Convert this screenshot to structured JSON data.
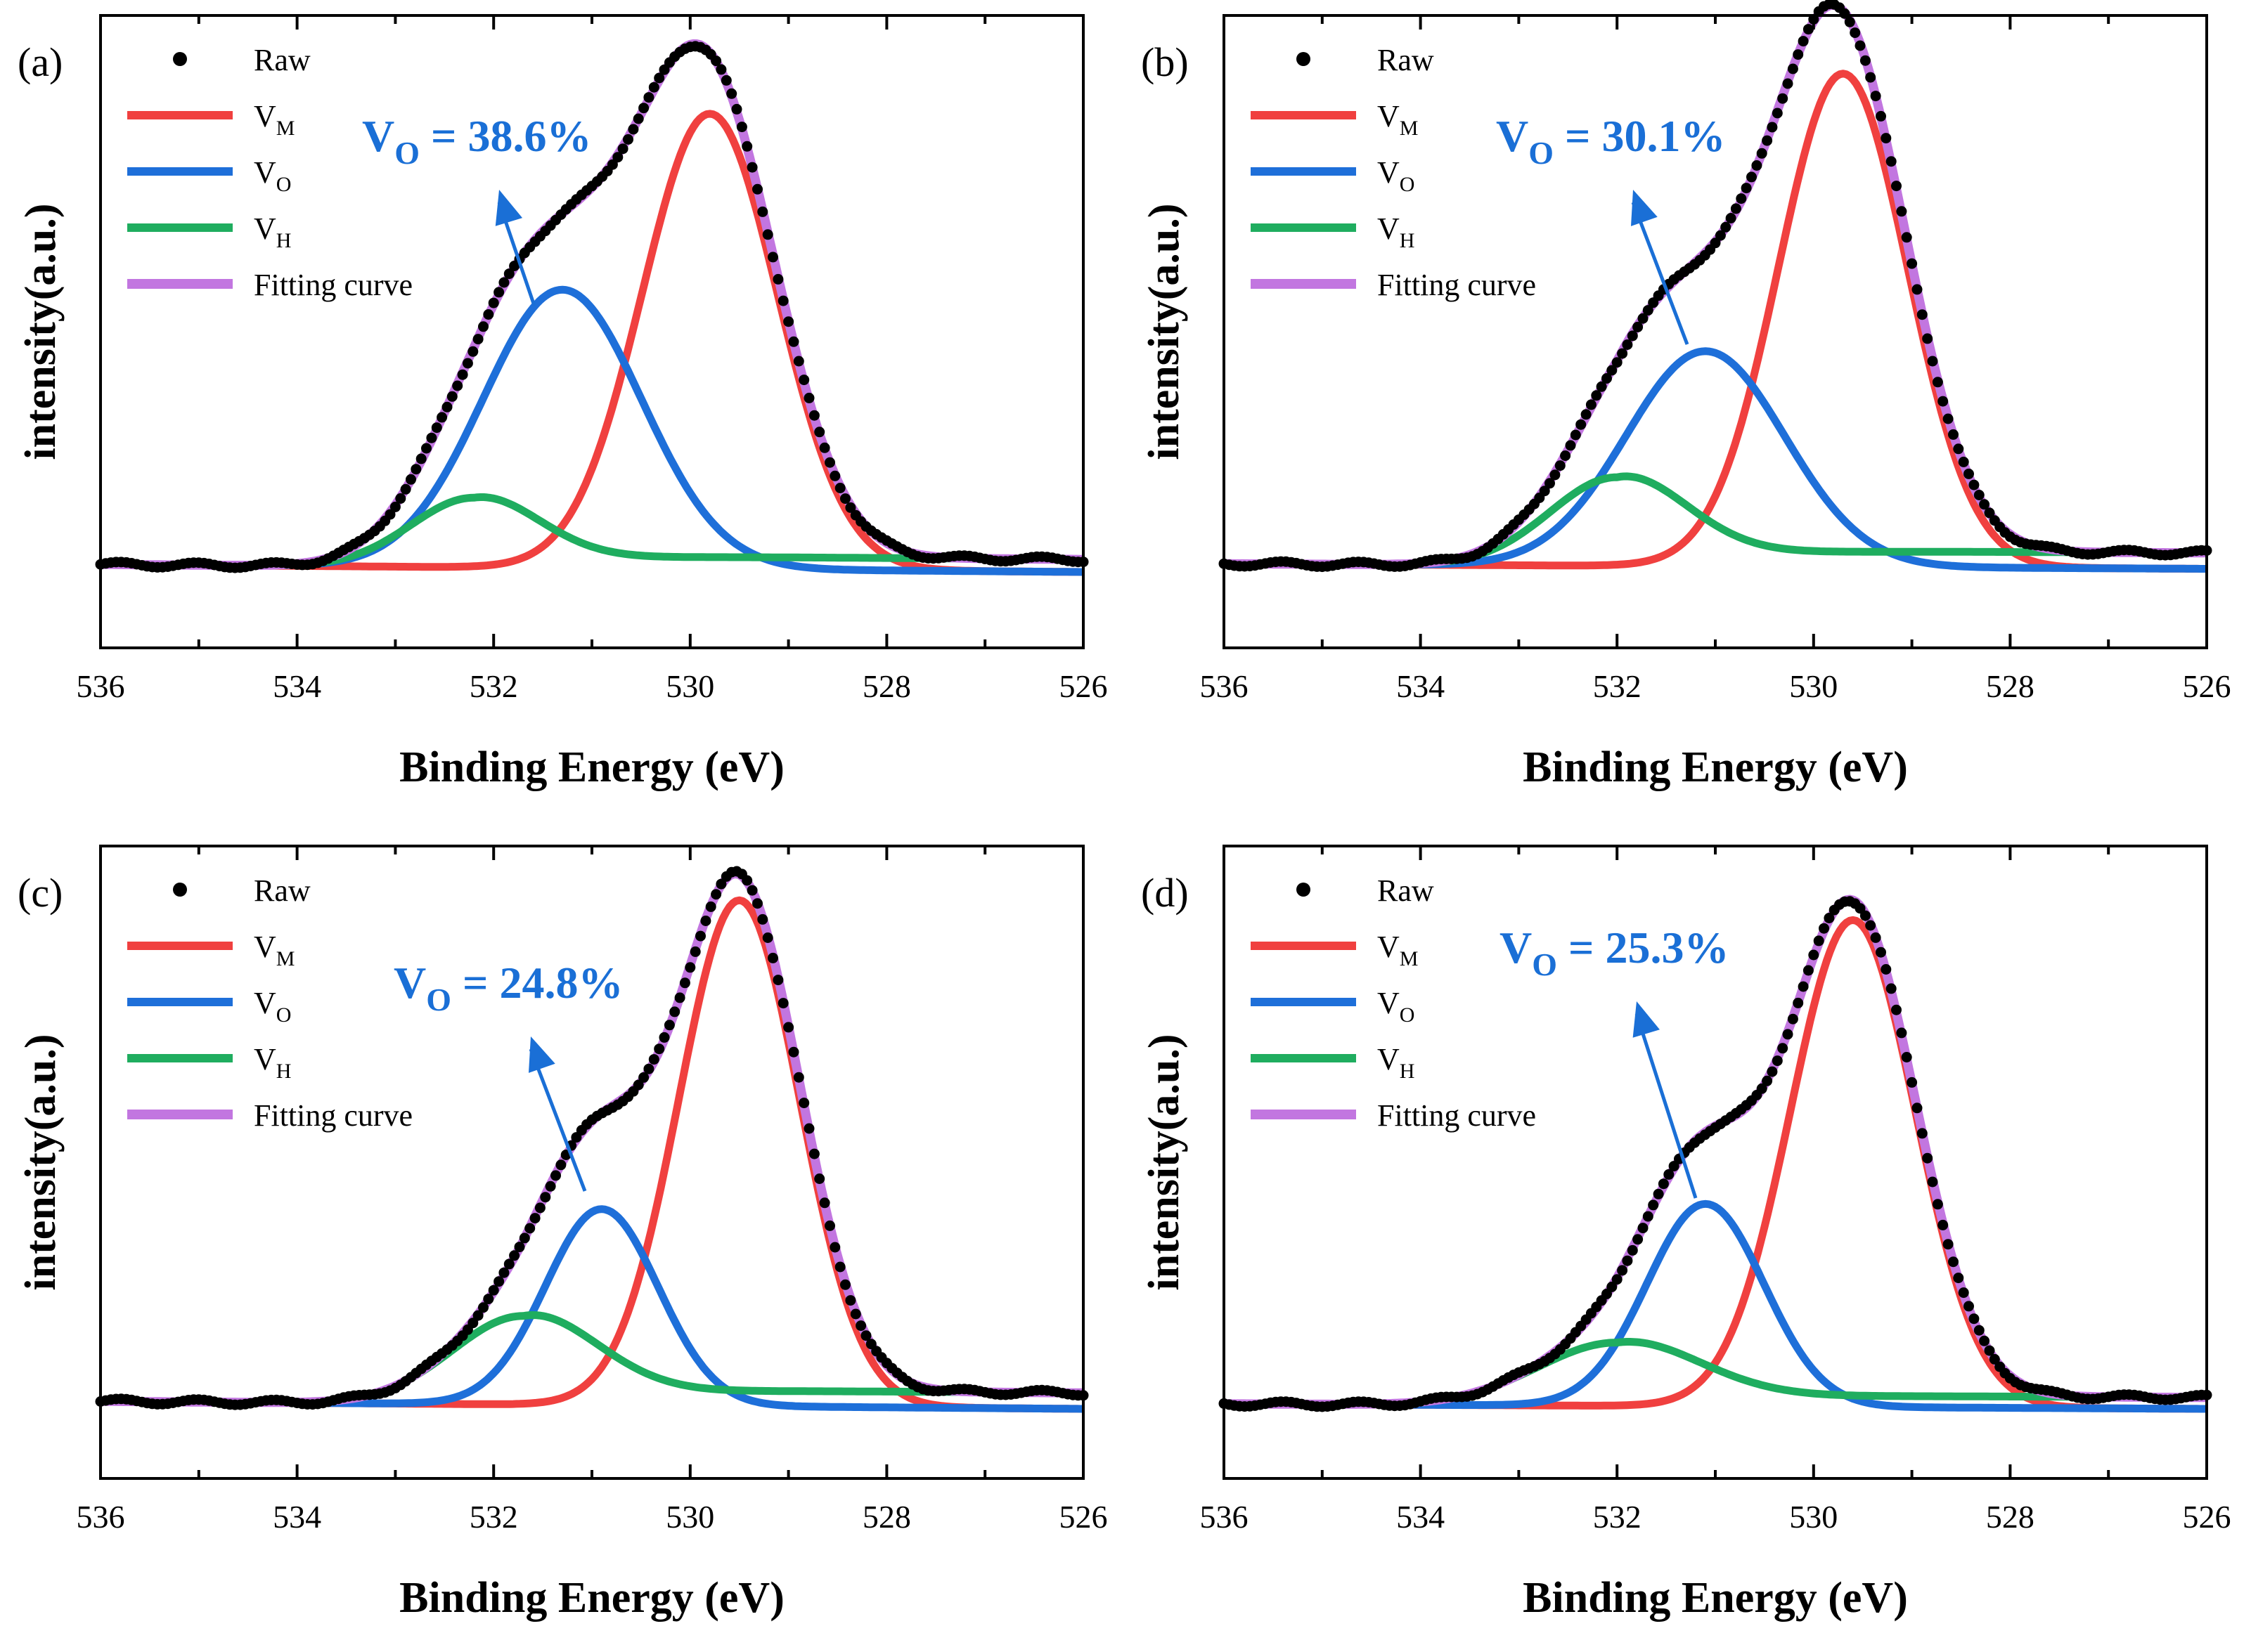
{
  "colors": {
    "raw": "#000000",
    "vm": "#f0403f",
    "vo": "#1e6fd9",
    "vh": "#1fad5f",
    "fit": "#c276e0",
    "annotation": "#1a6fd6"
  },
  "legend": {
    "raw": "Raw",
    "vm": {
      "base": "V",
      "sub": "M"
    },
    "vo": {
      "base": "V",
      "sub": "O"
    },
    "vh": {
      "base": "V",
      "sub": "H"
    },
    "fit": "Fitting curve"
  },
  "chart_data": [
    {
      "panel": "(a)",
      "type": "line",
      "xlabel": "Binding Energy (eV)",
      "ylabel": "intensity(a.u.)",
      "xlim": [
        536,
        526
      ],
      "xticks": [
        "536",
        "534",
        "532",
        "530",
        "528",
        "526"
      ],
      "baseline": 0.12,
      "slope": 0.012,
      "ylim": [
        0,
        1.0
      ],
      "annotation": {
        "base": "V",
        "sub": "O",
        "text": " = 38.6%",
        "value_percent": 38.6
      },
      "series": [
        {
          "name": "VM",
          "center": 529.8,
          "height": 0.72,
          "fwhm": 1.62
        },
        {
          "name": "VO",
          "center": 531.3,
          "height": 0.44,
          "fwhm": 1.9
        },
        {
          "name": "VH",
          "center": 532.2,
          "height": 0.11,
          "fwhm": 1.5,
          "tail": 0.004
        }
      ]
    },
    {
      "panel": "(b)",
      "type": "line",
      "xlabel": "Binding Energy (eV)",
      "ylabel": "intensity(a.u.)",
      "xlim": [
        536,
        526
      ],
      "xticks": [
        "536",
        "534",
        "532",
        "530",
        "528",
        "526"
      ],
      "baseline": 0.125,
      "slope": 0.008,
      "ylim": [
        0,
        1.0
      ],
      "annotation": {
        "base": "V",
        "sub": "O",
        "text": " = 30.1%",
        "value_percent": 30.1
      },
      "series": [
        {
          "name": "VM",
          "center": 529.7,
          "height": 0.78,
          "fwhm": 1.55
        },
        {
          "name": "VO",
          "center": 531.1,
          "height": 0.34,
          "fwhm": 1.9
        },
        {
          "name": "VH",
          "center": 532.0,
          "height": 0.14,
          "fwhm": 1.6,
          "tail": 0.004
        }
      ]
    },
    {
      "panel": "(c)",
      "type": "line",
      "xlabel": "Binding Energy (eV)",
      "ylabel": "intensity(a.u.)",
      "xlim": [
        536,
        526
      ],
      "xticks": [
        "536",
        "534",
        "532",
        "530",
        "528",
        "526"
      ],
      "baseline": 0.11,
      "slope": 0.012,
      "ylim": [
        0,
        1.0
      ],
      "annotation": {
        "base": "V",
        "sub": "O",
        "text": " = 24.8%",
        "value_percent": 24.8
      },
      "series": [
        {
          "name": "VM",
          "center": 529.5,
          "height": 0.8,
          "fwhm": 1.45
        },
        {
          "name": "VO",
          "center": 530.9,
          "height": 0.31,
          "fwhm": 1.35
        },
        {
          "name": "VH",
          "center": 531.7,
          "height": 0.14,
          "fwhm": 1.7,
          "tail": 0.005
        }
      ]
    },
    {
      "panel": "(d)",
      "type": "line",
      "xlabel": "Binding Energy (eV)",
      "ylabel": "intensity(a.u.)",
      "xlim": [
        536,
        526
      ],
      "xticks": [
        "536",
        "534",
        "532",
        "530",
        "528",
        "526"
      ],
      "baseline": 0.11,
      "slope": 0.008,
      "ylim": [
        0,
        1.0
      ],
      "annotation": {
        "base": "V",
        "sub": "O",
        "text": " = 25.3%",
        "value_percent": 25.3
      },
      "series": [
        {
          "name": "VM",
          "center": 529.6,
          "height": 0.77,
          "fwhm": 1.5
        },
        {
          "name": "VO",
          "center": 531.1,
          "height": 0.32,
          "fwhm": 1.4
        },
        {
          "name": "VH",
          "center": 532.0,
          "height": 0.1,
          "fwhm": 1.9,
          "tail": 0.004
        }
      ]
    }
  ]
}
